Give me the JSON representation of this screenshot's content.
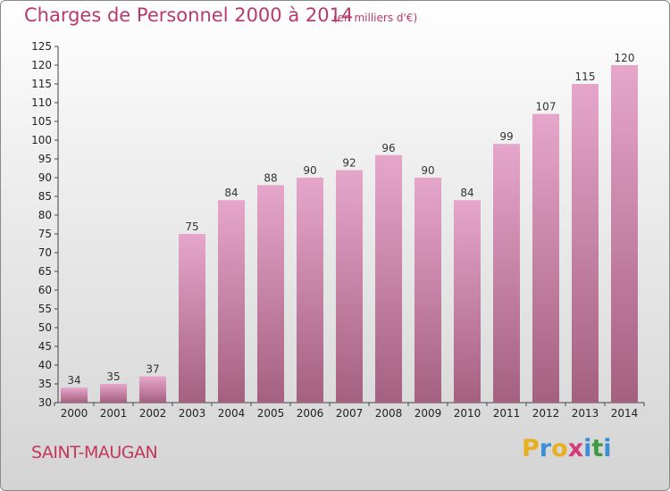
{
  "header": {
    "title": "Charges de Personnel 2000 à 2014",
    "unit": "(en milliers d'€)"
  },
  "footer": {
    "commune": "SAINT-MAUGAN",
    "logo_text": "Proxiti"
  },
  "colors": {
    "title": "#b8396b",
    "bar_top": "#e6a6cb",
    "bar_bottom": "#a4607f",
    "logo_P": "#e8b021",
    "logo_r": "#3b8fd6",
    "logo_o": "#e8b021",
    "logo_x": "#d7397a",
    "logo_i": "#3b8fd6",
    "logo_t": "#3f9b40",
    "logo_i2": "#3b8fd6"
  },
  "chart_data": {
    "type": "bar",
    "title": "Charges de Personnel 2000 à 2014",
    "subtitle": "(en milliers d'€)",
    "categories": [
      "2000",
      "2001",
      "2002",
      "2003",
      "2004",
      "2005",
      "2006",
      "2007",
      "2008",
      "2009",
      "2010",
      "2011",
      "2012",
      "2013",
      "2014"
    ],
    "values": [
      34,
      35,
      37,
      75,
      84,
      88,
      90,
      92,
      96,
      90,
      84,
      99,
      107,
      115,
      120
    ],
    "ylim": [
      30,
      125
    ],
    "yticks": [
      30,
      35,
      40,
      45,
      50,
      55,
      60,
      65,
      70,
      75,
      80,
      85,
      90,
      95,
      100,
      105,
      110,
      115,
      120,
      125
    ],
    "grid": false,
    "legend": "none"
  }
}
